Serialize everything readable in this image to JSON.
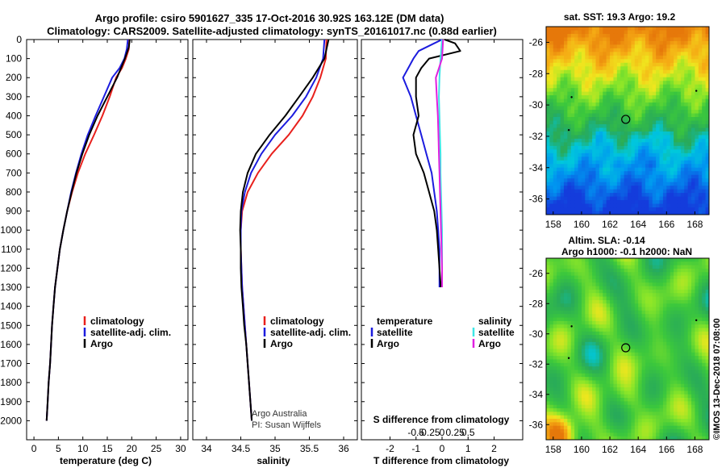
{
  "title_line1": "Argo profile: csiro 5901627_335 17-Oct-2016 30.92S 163.12E (DM data)",
  "title_line2": "Climatology: CARS2009. Satellite-adjusted climatology: synTS_20161017.nc (0.88d earlier)",
  "side_label": "©IMOS 13-Dec-2018 07:08:00",
  "credit_line1": "Argo Australia",
  "credit_line2": "PI: Susan Wijffels",
  "colors": {
    "climatology": "#e8201c",
    "satellite": "#1c1cde",
    "argo": "#000000",
    "sal_satellite": "#3ee6e6",
    "sal_argo": "#e020e0"
  },
  "chart_data": [
    {
      "type": "line",
      "name": "temperature-panel",
      "xlabel": "temperature (deg C)",
      "ylabel": "",
      "xlim": [
        -1.5,
        31.5
      ],
      "ylim": [
        2100,
        0
      ],
      "xticks": [
        0,
        5,
        10,
        15,
        20,
        25,
        30
      ],
      "yticks": [
        0,
        100,
        200,
        300,
        400,
        500,
        600,
        700,
        800,
        900,
        1000,
        1100,
        1200,
        1300,
        1400,
        1500,
        1600,
        1700,
        1800,
        1900,
        2000
      ],
      "legend": [
        "climatology",
        "satellite-adj. clim.",
        "Argo"
      ],
      "legend_position": "lower-right",
      "series": [
        {
          "name": "climatology",
          "color_key": "climatology",
          "points": [
            [
              19.5,
              0
            ],
            [
              19.4,
              50
            ],
            [
              18.8,
              100
            ],
            [
              18.0,
              150
            ],
            [
              16.8,
              200
            ],
            [
              15.5,
              300
            ],
            [
              14.0,
              400
            ],
            [
              12.3,
              500
            ],
            [
              10.5,
              600
            ],
            [
              9.0,
              700
            ],
            [
              7.8,
              800
            ],
            [
              6.8,
              900
            ],
            [
              6.0,
              1000
            ],
            [
              5.3,
              1100
            ],
            [
              4.8,
              1200
            ],
            [
              4.3,
              1300
            ],
            [
              4.0,
              1400
            ],
            [
              3.7,
              1500
            ],
            [
              3.5,
              1600
            ],
            [
              3.3,
              1700
            ],
            [
              3.0,
              1800
            ],
            [
              2.8,
              1900
            ],
            [
              2.6,
              2000
            ]
          ]
        },
        {
          "name": "satellite-adj. clim.",
          "color_key": "satellite",
          "points": [
            [
              19.2,
              0
            ],
            [
              19.0,
              50
            ],
            [
              18.5,
              100
            ],
            [
              17.5,
              150
            ],
            [
              16.0,
              200
            ],
            [
              14.3,
              300
            ],
            [
              12.6,
              400
            ],
            [
              11.0,
              500
            ],
            [
              9.7,
              600
            ],
            [
              8.6,
              700
            ],
            [
              7.6,
              800
            ],
            [
              6.8,
              900
            ],
            [
              6.0,
              1000
            ],
            [
              5.3,
              1100
            ],
            [
              4.8,
              1200
            ],
            [
              4.3,
              1300
            ],
            [
              4.0,
              1400
            ],
            [
              3.7,
              1500
            ],
            [
              3.5,
              1600
            ],
            [
              3.3,
              1700
            ],
            [
              3.0,
              1800
            ],
            [
              2.8,
              1900
            ],
            [
              2.6,
              2000
            ]
          ]
        },
        {
          "name": "Argo",
          "color_key": "argo",
          "points": [
            [
              19.6,
              0
            ],
            [
              19.4,
              40
            ],
            [
              18.6,
              100
            ],
            [
              17.8,
              150
            ],
            [
              17.0,
              200
            ],
            [
              15.0,
              300
            ],
            [
              13.0,
              400
            ],
            [
              11.3,
              500
            ],
            [
              9.9,
              600
            ],
            [
              8.7,
              700
            ],
            [
              7.7,
              800
            ],
            [
              6.8,
              900
            ],
            [
              6.0,
              1000
            ],
            [
              5.3,
              1100
            ],
            [
              4.8,
              1200
            ],
            [
              4.3,
              1300
            ],
            [
              4.0,
              1400
            ],
            [
              3.7,
              1500
            ],
            [
              3.5,
              1600
            ],
            [
              3.3,
              1700
            ],
            [
              3.0,
              1800
            ],
            [
              2.8,
              1900
            ],
            [
              2.6,
              2000
            ]
          ]
        }
      ]
    },
    {
      "type": "line",
      "name": "salinity-panel",
      "xlabel": "salinity",
      "ylabel": "",
      "xlim": [
        33.8,
        36.2
      ],
      "ylim": [
        2100,
        0
      ],
      "xticks": [
        34,
        34.5,
        35,
        35.5,
        36
      ],
      "legend": [
        "climatology",
        "satellite-adj. clim.",
        "Argo"
      ],
      "legend_position": "lower-right",
      "series": [
        {
          "name": "climatology",
          "color_key": "climatology",
          "points": [
            [
              35.75,
              0
            ],
            [
              35.74,
              100
            ],
            [
              35.66,
              200
            ],
            [
              35.55,
              300
            ],
            [
              35.4,
              400
            ],
            [
              35.2,
              500
            ],
            [
              34.95,
              600
            ],
            [
              34.75,
              700
            ],
            [
              34.6,
              800
            ],
            [
              34.52,
              900
            ],
            [
              34.5,
              1000
            ],
            [
              34.5,
              1100
            ],
            [
              34.51,
              1200
            ],
            [
              34.52,
              1300
            ],
            [
              34.54,
              1400
            ],
            [
              34.56,
              1500
            ],
            [
              34.58,
              1600
            ],
            [
              34.6,
              1700
            ],
            [
              34.62,
              1800
            ],
            [
              34.64,
              1900
            ],
            [
              34.66,
              2000
            ]
          ]
        },
        {
          "name": "satellite-adj. clim.",
          "color_key": "satellite",
          "points": [
            [
              35.72,
              0
            ],
            [
              35.7,
              100
            ],
            [
              35.6,
              200
            ],
            [
              35.45,
              300
            ],
            [
              35.25,
              400
            ],
            [
              35.0,
              500
            ],
            [
              34.8,
              600
            ],
            [
              34.65,
              700
            ],
            [
              34.56,
              800
            ],
            [
              34.51,
              900
            ],
            [
              34.5,
              1000
            ],
            [
              34.5,
              1100
            ],
            [
              34.51,
              1200
            ],
            [
              34.52,
              1300
            ],
            [
              34.54,
              1400
            ],
            [
              34.56,
              1500
            ],
            [
              34.58,
              1600
            ],
            [
              34.6,
              1700
            ],
            [
              34.62,
              1800
            ],
            [
              34.64,
              1900
            ],
            [
              34.66,
              2000
            ]
          ]
        },
        {
          "name": "Argo",
          "color_key": "argo",
          "points": [
            [
              35.78,
              0
            ],
            [
              35.72,
              100
            ],
            [
              35.55,
              200
            ],
            [
              35.35,
              300
            ],
            [
              35.15,
              400
            ],
            [
              34.92,
              500
            ],
            [
              34.72,
              600
            ],
            [
              34.6,
              700
            ],
            [
              34.53,
              800
            ],
            [
              34.5,
              900
            ],
            [
              34.49,
              1000
            ],
            [
              34.5,
              1100
            ],
            [
              34.5,
              1200
            ],
            [
              34.51,
              1300
            ],
            [
              34.53,
              1400
            ],
            [
              34.55,
              1500
            ],
            [
              34.58,
              1600
            ],
            [
              34.6,
              1700
            ],
            [
              34.62,
              1800
            ],
            [
              34.64,
              1900
            ],
            [
              34.66,
              2000
            ]
          ]
        }
      ]
    },
    {
      "type": "line",
      "name": "difference-panel",
      "xlabel": "T difference from climatology",
      "xlabel_top": "S difference from climatology",
      "xlim": [
        -3.1,
        3.1
      ],
      "ylim": [
        2100,
        0
      ],
      "xticks": [
        -2,
        -1,
        0,
        1,
        2
      ],
      "xticks_s": [
        -0.5,
        -0.25,
        0,
        0.25,
        0.5
      ],
      "xticks_s_labels": [
        "-0.5",
        "-0.25",
        "0",
        "0.25",
        "0.5"
      ],
      "legend_left_title": "temperature",
      "legend_right_title": "salinity",
      "legend_left": [
        "satellite",
        "Argo"
      ],
      "legend_right": [
        "satellite",
        "Argo"
      ],
      "series": [
        {
          "name": "temperature satellite",
          "color_key": "satellite",
          "points": [
            [
              0.0,
              0
            ],
            [
              -0.3,
              20
            ],
            [
              -0.9,
              60
            ],
            [
              -1.1,
              100
            ],
            [
              -1.3,
              150
            ],
            [
              -1.5,
              200
            ],
            [
              -1.2,
              300
            ],
            [
              -1.0,
              400
            ],
            [
              -0.8,
              500
            ],
            [
              -0.6,
              600
            ],
            [
              -0.4,
              700
            ],
            [
              -0.3,
              800
            ],
            [
              -0.2,
              900
            ],
            [
              -0.15,
              1000
            ],
            [
              -0.1,
              1100
            ],
            [
              -0.1,
              1200
            ],
            [
              -0.1,
              1300
            ]
          ]
        },
        {
          "name": "temperature Argo",
          "color_key": "argo",
          "points": [
            [
              0.1,
              0
            ],
            [
              0.5,
              20
            ],
            [
              0.7,
              60
            ],
            [
              -0.5,
              100
            ],
            [
              -0.8,
              150
            ],
            [
              -1.0,
              200
            ],
            [
              -1.0,
              300
            ],
            [
              -0.9,
              400
            ],
            [
              -1.1,
              500
            ],
            [
              -1.0,
              600
            ],
            [
              -0.7,
              700
            ],
            [
              -0.5,
              800
            ],
            [
              -0.3,
              900
            ],
            [
              -0.2,
              1000
            ],
            [
              -0.15,
              1100
            ],
            [
              -0.1,
              1200
            ],
            [
              -0.05,
              1300
            ]
          ]
        },
        {
          "name": "salinity satellite",
          "color_key": "sal_satellite",
          "points": [
            [
              0.0,
              0
            ],
            [
              -0.03,
              100
            ],
            [
              -0.05,
              200
            ],
            [
              -0.06,
              300
            ],
            [
              -0.05,
              400
            ],
            [
              -0.04,
              500
            ],
            [
              -0.03,
              600
            ],
            [
              -0.03,
              700
            ],
            [
              -0.02,
              800
            ],
            [
              -0.01,
              900
            ],
            [
              0.0,
              1000
            ],
            [
              0.0,
              1100
            ],
            [
              0.0,
              1200
            ],
            [
              0.0,
              1300
            ]
          ]
        },
        {
          "name": "salinity Argo",
          "color_key": "sal_argo",
          "points": [
            [
              0.02,
              0
            ],
            [
              0.0,
              100
            ],
            [
              -0.12,
              200
            ],
            [
              -0.1,
              300
            ],
            [
              -0.08,
              400
            ],
            [
              -0.07,
              500
            ],
            [
              -0.06,
              600
            ],
            [
              -0.05,
              700
            ],
            [
              -0.04,
              800
            ],
            [
              -0.03,
              900
            ],
            [
              -0.02,
              1000
            ],
            [
              -0.01,
              1100
            ],
            [
              0.0,
              1200
            ],
            [
              0.0,
              1300
            ]
          ]
        }
      ]
    },
    {
      "type": "heatmap",
      "name": "sst-map",
      "title": "sat. SST: 19.3 Argo: 19.2",
      "xlim": [
        157.5,
        169
      ],
      "ylim": [
        -37,
        -25
      ],
      "xticks": [
        158,
        160,
        162,
        164,
        166,
        168
      ],
      "yticks": [
        -26,
        -28,
        -30,
        -32,
        -34,
        -36
      ],
      "marker": [
        163.12,
        -30.92
      ]
    },
    {
      "type": "heatmap",
      "name": "sla-map",
      "title": "Altim. SLA: -0.14",
      "subtitle": "Argo h1000: -0.1 h2000: NaN",
      "xlim": [
        157.5,
        169
      ],
      "ylim": [
        -37,
        -25
      ],
      "xticks": [
        158,
        160,
        162,
        164,
        166,
        168
      ],
      "yticks": [
        -26,
        -28,
        -30,
        -32,
        -34,
        -36
      ],
      "marker": [
        163.12,
        -30.92
      ]
    }
  ]
}
